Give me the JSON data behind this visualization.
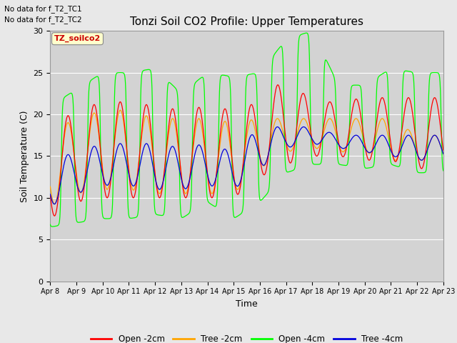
{
  "title": "Tonzi Soil CO2 Profile: Upper Temperatures",
  "xlabel": "Time",
  "ylabel": "Soil Temperature (C)",
  "ylim": [
    0,
    30
  ],
  "yticks": [
    0,
    5,
    10,
    15,
    20,
    25,
    30
  ],
  "annotation_line1": "No data for f_T2_TC1",
  "annotation_line2": "No data for f_T2_TC2",
  "box_label": "TZ_soilco2",
  "legend_labels": [
    "Open -2cm",
    "Tree -2cm",
    "Open -4cm",
    "Tree -4cm"
  ],
  "colors": {
    "open2": "#ff0000",
    "tree2": "#ffa500",
    "open4": "#00ff00",
    "tree4": "#0000dd"
  },
  "fig_bg": "#e8e8e8",
  "ax_bg": "#d3d3d3"
}
